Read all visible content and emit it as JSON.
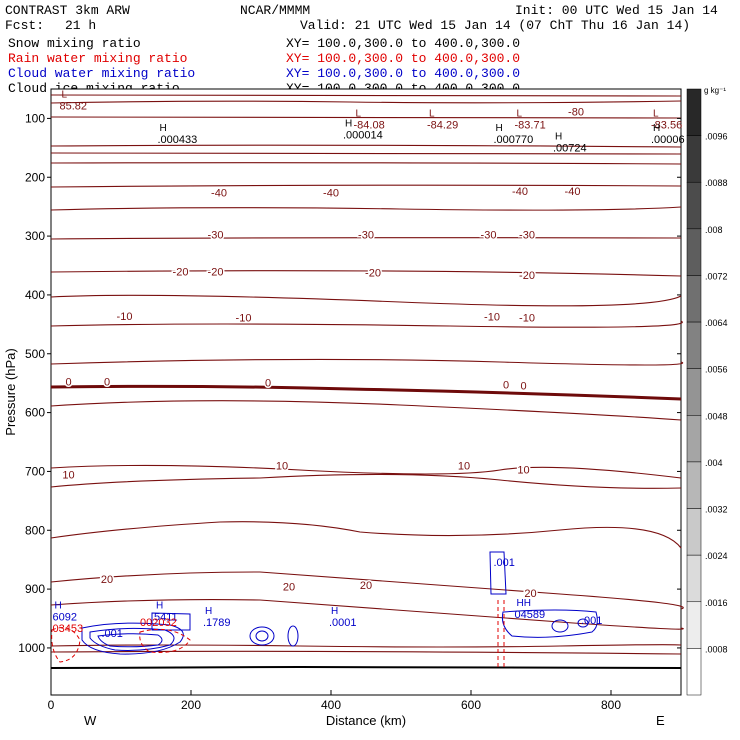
{
  "header": {
    "title": "CONTRAST  3km ARW",
    "center": "NCAR/MMMM",
    "init": "Init: 00 UTC Wed 15 Jan 14",
    "fcst_label": "Fcst:",
    "fcst_value": "21 h",
    "valid": "Valid: 21 UTC Wed 15 Jan 14 (07 ChT Thu 16 Jan 14)"
  },
  "fields": [
    {
      "name": "Snow mixing ratio",
      "xy": "XY=  100.0,300.0 to 400.0,300.0",
      "color": "#000000"
    },
    {
      "name": "Rain water mixing ratio",
      "xy": "XY=  100.0,300.0 to 400.0,300.0",
      "color": "#e00000"
    },
    {
      "name": "Cloud water mixing ratio",
      "xy": "XY=  100.0,300.0 to 400.0,300.0",
      "color": "#0000c8"
    },
    {
      "name": "Cloud ice mixing ratio",
      "xy": "XY=  100.0,300.0 to 400.0,300.0",
      "color": "#000000"
    }
  ],
  "colorbar": {
    "unit": "g kg⁻¹",
    "ticks": [
      ".0096",
      ".0088",
      ".008",
      ".0072",
      ".0064",
      ".0056",
      ".0048",
      ".004",
      ".0032",
      ".0024",
      ".0016",
      ".0008"
    ]
  },
  "colors": {
    "temperature": "#7a1010",
    "freezing": "#6e0a0a",
    "cloud_water": "#0000c8",
    "rain": "#e00000",
    "terrain": "#000000"
  },
  "chart_data": {
    "type": "contour",
    "xlabel": "Distance (km)",
    "ylabel": "Pressure (hPa)",
    "xlim": [
      0,
      900
    ],
    "ylim": [
      1080,
      50
    ],
    "xticks": [
      0,
      200,
      400,
      600,
      800
    ],
    "yticks": [
      100,
      200,
      300,
      400,
      500,
      600,
      700,
      800,
      900,
      1000
    ],
    "x_end_labels": {
      "left": "W",
      "right": "E"
    },
    "isotherm_labels": [
      {
        "text": "-40",
        "x": 240,
        "p": 226
      },
      {
        "text": "-40",
        "x": 400,
        "p": 226
      },
      {
        "text": "-40",
        "x": 670,
        "p": 223
      },
      {
        "text": "-40",
        "x": 745,
        "p": 223
      },
      {
        "text": "-30",
        "x": 235,
        "p": 297
      },
      {
        "text": "-30",
        "x": 450,
        "p": 297
      },
      {
        "text": "-30",
        "x": 625,
        "p": 297
      },
      {
        "text": "-30",
        "x": 680,
        "p": 297
      },
      {
        "text": "-20",
        "x": 185,
        "p": 360
      },
      {
        "text": "-20",
        "x": 235,
        "p": 360
      },
      {
        "text": "-20",
        "x": 460,
        "p": 362
      },
      {
        "text": "-20",
        "x": 680,
        "p": 366
      },
      {
        "text": "-10",
        "x": 105,
        "p": 436
      },
      {
        "text": "-10",
        "x": 275,
        "p": 438
      },
      {
        "text": "-10",
        "x": 630,
        "p": 437
      },
      {
        "text": "-10",
        "x": 680,
        "p": 438
      },
      {
        "text": "0",
        "x": 25,
        "p": 547
      },
      {
        "text": "0",
        "x": 80,
        "p": 547
      },
      {
        "text": "0",
        "x": 310,
        "p": 549
      },
      {
        "text": "0",
        "x": 650,
        "p": 552
      },
      {
        "text": "0",
        "x": 675,
        "p": 554
      },
      {
        "text": "10",
        "x": 330,
        "p": 690
      },
      {
        "text": "10",
        "x": 25,
        "p": 705
      },
      {
        "text": "10",
        "x": 590,
        "p": 690
      },
      {
        "text": "10",
        "x": 675,
        "p": 697
      },
      {
        "text": "20",
        "x": 80,
        "p": 883
      },
      {
        "text": "20",
        "x": 340,
        "p": 896
      },
      {
        "text": "20",
        "x": 450,
        "p": 893
      },
      {
        "text": "20",
        "x": 685,
        "p": 907
      }
    ],
    "extrema": [
      {
        "letter": "L",
        "value": "85.82",
        "x": 15,
        "p": 80,
        "color": "#7a1010"
      },
      {
        "letter": "L",
        "value": "-84.08",
        "x": 435,
        "p": 112,
        "color": "#7a1010"
      },
      {
        "letter": "L",
        "value": "-84.29",
        "x": 540,
        "p": 112,
        "color": "#7a1010"
      },
      {
        "letter": "L",
        "value": "-83.71",
        "x": 665,
        "p": 112,
        "color": "#7a1010"
      },
      {
        "letter": "L",
        "value": "-83.56",
        "x": 860,
        "p": 112,
        "color": "#7a1010"
      },
      {
        "letter": "H",
        "value": ".000433",
        "x": 155,
        "p": 137,
        "color": "#000000"
      },
      {
        "letter": "H",
        "value": ".000014",
        "x": 420,
        "p": 129,
        "color": "#000000"
      },
      {
        "letter": "H",
        "value": ".000770",
        "x": 635,
        "p": 137,
        "color": "#000000"
      },
      {
        "letter": "H",
        "value": ".00724",
        "x": 720,
        "p": 151,
        "color": "#000000"
      },
      {
        "letter": "H",
        "value": ".00006",
        "x": 860,
        "p": 137,
        "color": "#000000"
      },
      {
        "letter": "H",
        "value": "6092",
        "x": 5,
        "p": 948,
        "color": "#0000c8"
      },
      {
        "letter": "",
        "value": "03453",
        "x": 5,
        "p": 968,
        "color": "#e00000"
      },
      {
        "letter": "",
        "value": ".001",
        "x": 75,
        "p": 976,
        "color": "#0000c8"
      },
      {
        "letter": "H",
        "value": "5411",
        "x": 150,
        "p": 948,
        "color": "#0000c8"
      },
      {
        "letter": "",
        "value": "002032",
        "x": 130,
        "p": 958,
        "color": "#e00000"
      },
      {
        "letter": "H",
        "value": ".1789",
        "x": 220,
        "p": 958,
        "color": "#0000c8"
      },
      {
        "letter": "H",
        "value": ".0001",
        "x": 400,
        "p": 958,
        "color": "#0000c8"
      },
      {
        "letter": "",
        "value": ".001",
        "x": 635,
        "p": 856,
        "color": "#0000c8"
      },
      {
        "letter": "HH",
        "value": "04589",
        "x": 665,
        "p": 944,
        "color": "#0000c8"
      },
      {
        "letter": "",
        "value": ".001",
        "x": 760,
        "p": 954,
        "color": "#0000c8"
      }
    ],
    "contour_labels": [
      {
        "text": "-80",
        "x": 750,
        "p": 88
      }
    ]
  }
}
